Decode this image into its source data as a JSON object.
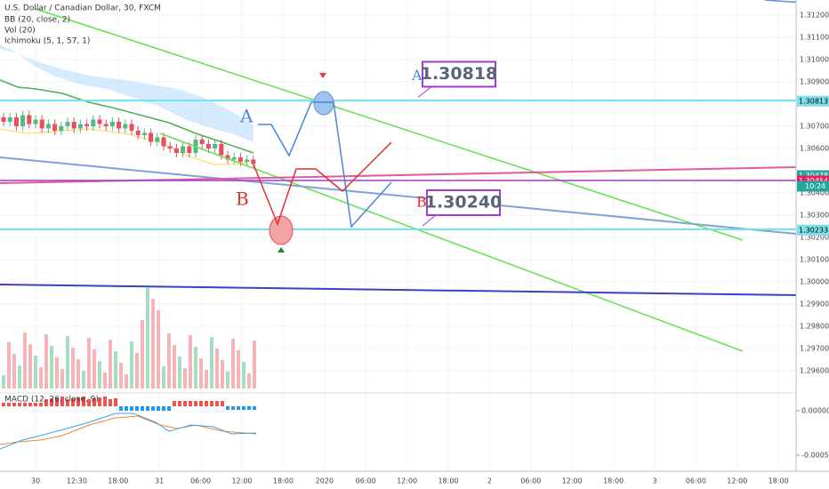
{
  "chart_data": {
    "type": "candlestick",
    "legend": [
      "U.S. Dollar / Canadian Dollar, 30, FXCM",
      "BB (20, close, 2)",
      "Vol (20)",
      "Ichimoku (5, 1, 57, 1)"
    ],
    "closes": [
      1.3072,
      1.3074,
      1.307,
      1.3075,
      1.3071,
      1.3073,
      1.3069,
      1.3071,
      1.3068,
      1.307,
      1.3072,
      1.3069,
      1.3071,
      1.307,
      1.3073,
      1.3071,
      1.307,
      1.3072,
      1.3069,
      1.3071,
      1.3068,
      1.3066,
      1.3067,
      1.3063,
      1.3065,
      1.3061,
      1.306,
      1.3058,
      1.3061,
      1.3058,
      1.3064,
      1.3062,
      1.306,
      1.3062,
      1.3057,
      1.3055,
      1.3056,
      1.3054,
      1.3055,
      1.3053
    ],
    "up_color": "#53b987",
    "down_color": "#eb4d5c",
    "ylim": [
      1.29544,
      1.3128
    ],
    "yticks": [
      {
        "value": 1.312,
        "label": "1.31200"
      },
      {
        "value": 1.311,
        "label": "1.31100"
      },
      {
        "value": 1.31,
        "label": "1.31000"
      },
      {
        "value": 1.309,
        "label": "1.30900"
      },
      {
        "value": 1.307,
        "label": "1.30700"
      },
      {
        "value": 1.306,
        "label": "1.30600"
      },
      {
        "value": 1.304,
        "label": "1.30400"
      },
      {
        "value": 1.303,
        "label": "1.30300"
      },
      {
        "value": 1.302,
        "label": "1.30200"
      },
      {
        "value": 1.301,
        "label": "1.30100"
      },
      {
        "value": 1.3,
        "label": "1.30000"
      },
      {
        "value": 1.299,
        "label": "1.29900"
      },
      {
        "value": 1.298,
        "label": "1.29800"
      },
      {
        "value": 1.297,
        "label": "1.29700"
      },
      {
        "value": 1.296,
        "label": "1.29600"
      }
    ],
    "price_labels": [
      {
        "value": 1.30813,
        "label": "1.30813",
        "color": "#80deea"
      },
      {
        "value": 1.30478,
        "label": "1.30478",
        "color": "#26a69a"
      },
      {
        "value": 1.30454,
        "label": "1.30454",
        "color": "#e91e63"
      },
      {
        "value": 1.30233,
        "label": "1.30233",
        "color": "#80deea"
      }
    ],
    "countdown": "10:24",
    "x_labels": [
      "30",
      "12:30",
      "18:00",
      "31",
      "06:00",
      "12:00",
      "18:00",
      "2020",
      "06:00",
      "12:00",
      "18:00",
      "2",
      "06:00",
      "12:00",
      "18:00",
      "3",
      "06:00",
      "12:00",
      "18:00"
    ],
    "annotations": [
      {
        "value": 1.30818,
        "label": "1.30818",
        "letter": "A"
      },
      {
        "value": 1.3024,
        "label": "1.30240",
        "letter": "B"
      }
    ],
    "scenario_labels": [
      "A",
      "B"
    ],
    "macd": {
      "title": "MACD (12, 26, close, 9)",
      "ylim": [
        -0.00068,
        0.00019
      ],
      "yticks": [
        {
          "value": 0,
          "label": "0.00000"
        },
        {
          "value": -0.0005,
          "label": "-0.00050"
        }
      ]
    }
  }
}
